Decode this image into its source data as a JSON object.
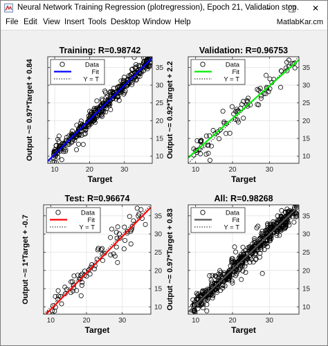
{
  "window": {
    "title": "Neural Network Training Regression (plotregression), Epoch 21, Validation stop.",
    "minimize": "–",
    "maximize": "□",
    "close": "✕"
  },
  "menu": [
    "File",
    "Edit",
    "View",
    "Insert",
    "Tools",
    "Desktop",
    "Window",
    "Help"
  ],
  "brand": "MatlabKar.cm",
  "icons": {
    "app": "matlab-figure-icon",
    "minimize": "minimize-icon",
    "maximize": "maximize-icon",
    "close": "close-icon"
  },
  "colors": {
    "training": "#0000ff",
    "validation": "#00ee00",
    "test": "#ff0000",
    "all": "#555555"
  },
  "legend": {
    "data": "Data",
    "fit": "Fit",
    "ident": "Y = T"
  },
  "chart_data": [
    {
      "type": "scatter",
      "title": "Training: R=0.98742",
      "xlabel": "Target",
      "ylabel": "Output ~= 0.97*Target + 0.84",
      "xlim": [
        8,
        38
      ],
      "ylim": [
        8,
        38
      ],
      "xticks": [
        10,
        20,
        30
      ],
      "yticks": [
        10,
        15,
        20,
        25,
        30,
        35
      ],
      "fit": {
        "slope": 0.97,
        "intercept": 0.84
      },
      "fit_color": "#0000ff",
      "legend_position": "top-left",
      "n_points": 380,
      "noise": 1.1,
      "x_range": [
        9,
        37.5
      ],
      "seed": 11
    },
    {
      "type": "scatter",
      "title": "Validation: R=0.96753",
      "xlabel": "Target",
      "ylabel": "Output ~= 0.92*Target + 2.2",
      "xlim": [
        8,
        38
      ],
      "ylim": [
        8,
        38
      ],
      "xticks": [
        10,
        20,
        30
      ],
      "yticks": [
        10,
        15,
        20,
        25,
        30,
        35
      ],
      "fit": {
        "slope": 0.92,
        "intercept": 2.2
      },
      "fit_color": "#00ee00",
      "legend_position": "top-left",
      "n_points": 80,
      "noise": 1.8,
      "x_range": [
        9,
        37
      ],
      "seed": 23
    },
    {
      "type": "scatter",
      "title": "Test: R=0.96674",
      "xlabel": "Target",
      "ylabel": "Output ~= 1*Target + -0.7",
      "xlim": [
        8,
        38
      ],
      "ylim": [
        8,
        38
      ],
      "xticks": [
        10,
        20,
        30
      ],
      "yticks": [
        10,
        15,
        20,
        25,
        30,
        35
      ],
      "fit": {
        "slope": 1.0,
        "intercept": -0.7
      },
      "fit_color": "#ff0000",
      "legend_position": "top-left",
      "n_points": 80,
      "noise": 1.9,
      "x_range": [
        9,
        37
      ],
      "seed": 37
    },
    {
      "type": "scatter",
      "title": "All: R=0.98268",
      "xlabel": "Target",
      "ylabel": "Output ~= 0.97*Target + 0.83",
      "xlim": [
        8,
        38
      ],
      "ylim": [
        8,
        38
      ],
      "xticks": [
        10,
        20,
        30
      ],
      "yticks": [
        10,
        15,
        20,
        25,
        30,
        35
      ],
      "fit": {
        "slope": 0.97,
        "intercept": 0.83
      },
      "fit_color": "#555555",
      "legend_position": "top-left",
      "n_points": 540,
      "noise": 1.35,
      "x_range": [
        9,
        37.5
      ],
      "seed": 53
    }
  ]
}
